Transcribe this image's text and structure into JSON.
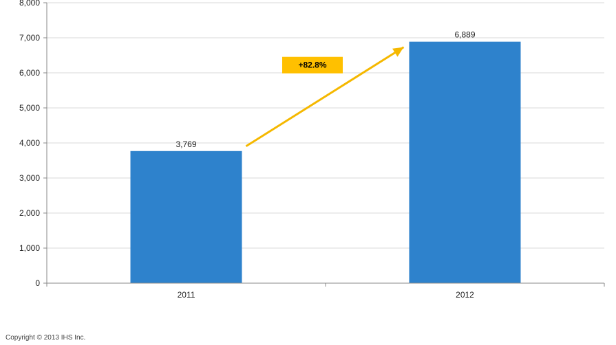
{
  "chart_data": {
    "type": "bar",
    "categories": [
      "2011",
      "2012"
    ],
    "values": [
      3769,
      6889
    ],
    "data_labels": [
      "3,769",
      "6,889"
    ],
    "ylim": [
      0,
      8000
    ],
    "yticks": [
      0,
      1000,
      2000,
      3000,
      4000,
      5000,
      6000,
      7000,
      8000
    ],
    "ytick_labels": [
      "0",
      "1,000",
      "2,000",
      "3,000",
      "4,000",
      "5,000",
      "6,000",
      "7,000",
      "8,000"
    ],
    "grid": true,
    "legend": "none",
    "annotation": {
      "text": "+82.8%",
      "type": "growth-arrow"
    },
    "colors": {
      "bar": "#2e82cc",
      "arrow": "#f5b800",
      "annotation_box": "#ffc000",
      "grid": "#d9d9d9",
      "axis": "#888888"
    }
  },
  "footer": {
    "copyright": "Copyright © 2013 IHS Inc."
  }
}
